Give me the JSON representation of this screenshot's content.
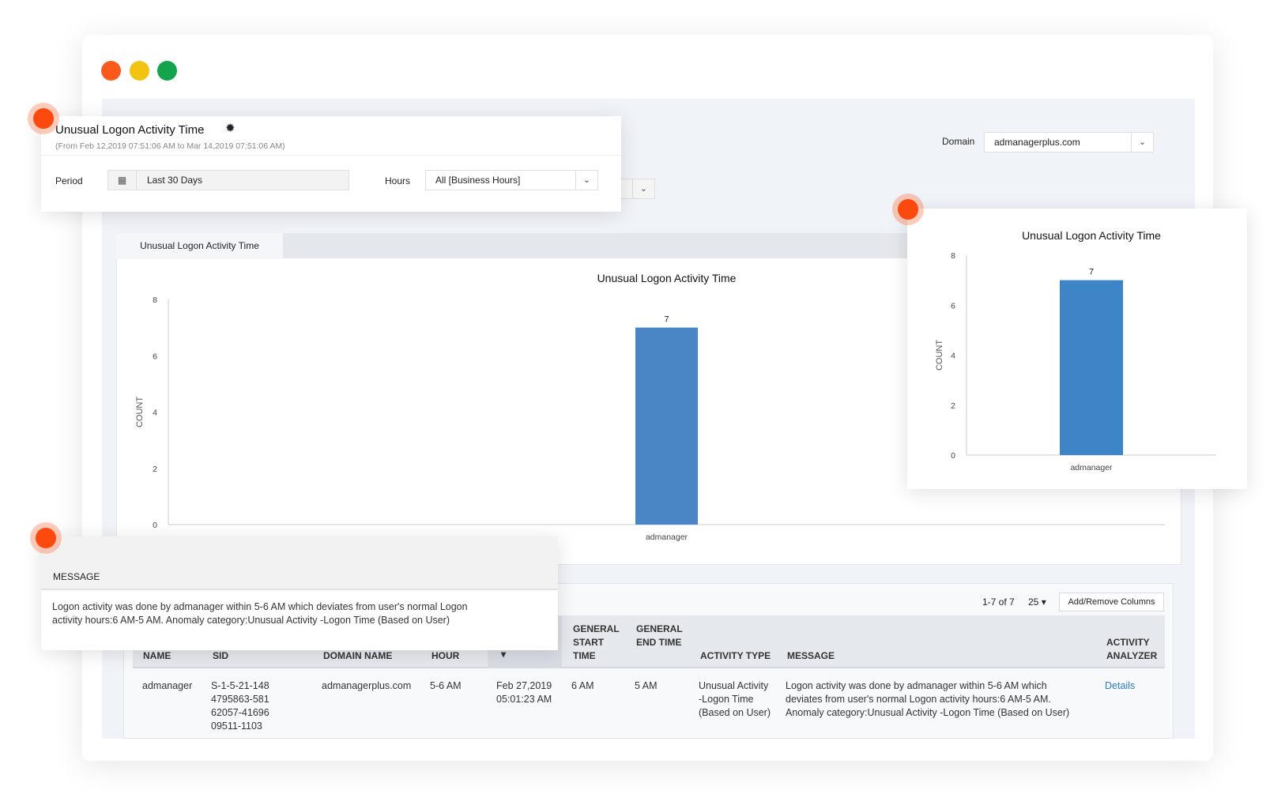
{
  "window": {
    "lights": [
      "#fc5a1c",
      "#f2c40f",
      "#14a44d"
    ]
  },
  "header": {
    "title": "Unusual Logon Activity Time",
    "range": "(From Feb 12,2019 07:51:06 AM to Mar 14,2019 07:51:06 AM)",
    "period_label": "Period",
    "period_value": "Last 30 Days",
    "hours_label": "Hours",
    "hours_value": "All [Business Hours]",
    "domain_label": "Domain",
    "domain_value": "admanagerplus.com"
  },
  "tab": {
    "label": "Unusual Logon Activity Time"
  },
  "chart_data": [
    {
      "type": "bar",
      "title": "Unusual Logon Activity Time",
      "ylabel": "COUNT",
      "xlabel": "",
      "categories": [
        "admanager"
      ],
      "values": [
        7
      ],
      "ylim": [
        0,
        8
      ],
      "yticks": [
        "0",
        "2",
        "4",
        "6",
        "8"
      ],
      "color": "#4a86c5"
    },
    {
      "type": "bar",
      "title": "Unusual Logon Activity Time",
      "ylabel": "COUNT",
      "xlabel": "",
      "categories": [
        "admanager"
      ],
      "values": [
        7
      ],
      "ylim": [
        0,
        8
      ],
      "yticks": [
        "0",
        "2",
        "4",
        "6",
        "8"
      ],
      "color": "#3d85c6"
    }
  ],
  "message_card": {
    "header": "MESSAGE",
    "text": "Logon activity was done by admanager within 5-6 AM which deviates from user's normal Logon activity hours:6 AM-5 AM. Anomaly category:Unusual Activity -Logon Time (Based on User)"
  },
  "table": {
    "pagination": "1-7 of 7",
    "page_size": "25",
    "add_remove": "Add/Remove Columns",
    "columns": [
      "NAME",
      "SID",
      "DOMAIN NAME",
      "HOUR",
      "",
      "GENERAL START TIME",
      "GENERAL END TIME",
      "ACTIVITY TYPE",
      "MESSAGE",
      "ACTIVITY ANALYZER"
    ],
    "rows": [
      {
        "name": "admanager",
        "sid": "S-1-5-21-1484795863-58162057-4169609511-1103",
        "domain": "admanagerplus.com",
        "hour": "5-6 AM",
        "time": "Feb 27,2019 05:01:23 AM",
        "start": "6 AM",
        "end": "5 AM",
        "type": "Unusual Activity -Logon Time (Based on User)",
        "message": "Logon activity was done by admanager within 5-6 AM which deviates from user's normal Logon activity hours:6 AM-5 AM. Anomaly category:Unusual Activity -Logon Time (Based on User)",
        "analyzer": "Details"
      }
    ]
  }
}
